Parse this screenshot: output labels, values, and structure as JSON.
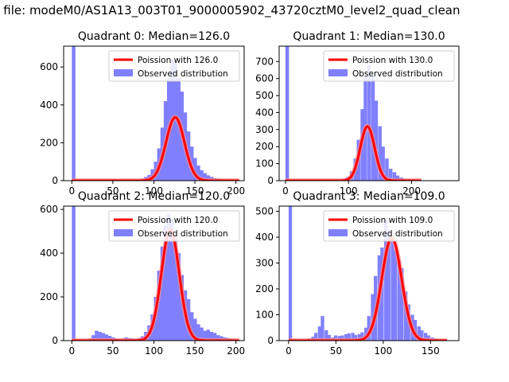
{
  "suptitle": "n file: modeM0/AS1A13_003T01_9000005902_43720cztM0_level2_quad_clean",
  "chart_data": [
    {
      "type": "bar",
      "title": "Quadrant 0: Median=126.0",
      "xlim": [
        -10,
        210
      ],
      "ylim": [
        0,
        710
      ],
      "xticks": [
        0,
        50,
        100,
        150,
        200
      ],
      "yticks": [
        0,
        200,
        400,
        600
      ],
      "bin_width": 4.4,
      "hist_x": [
        0,
        72,
        76,
        80,
        84,
        88,
        92,
        96,
        100,
        104,
        108,
        112,
        116,
        120,
        124,
        128,
        132,
        136,
        140,
        144,
        148,
        152,
        156,
        160,
        164,
        168,
        172,
        176,
        180,
        184,
        188,
        192,
        196,
        200
      ],
      "hist_y": [
        710,
        2,
        3,
        5,
        10,
        20,
        30,
        60,
        100,
        170,
        280,
        420,
        540,
        640,
        630,
        540,
        470,
        360,
        260,
        180,
        120,
        80,
        55,
        40,
        28,
        20,
        14,
        10,
        8,
        6,
        5,
        4,
        3,
        2
      ],
      "poisson_mean": 126.0,
      "poisson_scale": 4.4,
      "poisson_n": 9400,
      "legend": [
        "Poission with 126.0",
        "Observed distribution"
      ]
    },
    {
      "type": "bar",
      "title": "Quadrant 1: Median=130.0",
      "xlim": [
        -10,
        275
      ],
      "ylim": [
        0,
        790
      ],
      "xticks": [
        0,
        100,
        200
      ],
      "yticks": [
        0,
        100,
        200,
        300,
        400,
        500,
        600,
        700
      ],
      "bin_width": 5.6,
      "hist_x": [
        0,
        40,
        80,
        90,
        96,
        102,
        108,
        113,
        119,
        124,
        130,
        136,
        141,
        147,
        152,
        158,
        164,
        170,
        175,
        181,
        186,
        192,
        198,
        204,
        210
      ],
      "hist_y": [
        790,
        8,
        4,
        6,
        22,
        55,
        130,
        240,
        420,
        610,
        680,
        620,
        470,
        320,
        200,
        130,
        70,
        50,
        30,
        18,
        10,
        6,
        4,
        3,
        2
      ],
      "poisson_mean": 130.0,
      "poisson_scale": 5.6,
      "poisson_n": 9100,
      "legend": [
        "Poission with 130.0",
        "Observed distribution"
      ]
    },
    {
      "type": "bar",
      "title": "Quadrant 2: Median=120.0",
      "xlim": [
        -10,
        210
      ],
      "ylim": [
        0,
        615
      ],
      "xticks": [
        0,
        50,
        100,
        150,
        200
      ],
      "yticks": [
        0,
        200,
        400,
        600
      ],
      "bin_width": 4.4,
      "hist_x": [
        0,
        20,
        24,
        28,
        32,
        36,
        40,
        44,
        48,
        52,
        56,
        60,
        64,
        68,
        72,
        76,
        80,
        84,
        88,
        92,
        96,
        100,
        104,
        108,
        112,
        116,
        120,
        124,
        128,
        132,
        136,
        140,
        144,
        148,
        152,
        156,
        160,
        164,
        168,
        172,
        176,
        180,
        184,
        188,
        192,
        196,
        200
      ],
      "hist_y": [
        615,
        10,
        25,
        45,
        40,
        35,
        28,
        22,
        15,
        10,
        8,
        10,
        15,
        12,
        10,
        8,
        12,
        20,
        40,
        70,
        120,
        200,
        320,
        430,
        530,
        580,
        560,
        470,
        400,
        300,
        230,
        190,
        130,
        100,
        75,
        60,
        45,
        50,
        40,
        35,
        25,
        20,
        15,
        12,
        8,
        6,
        4
      ],
      "poisson_mean": 120.0,
      "poisson_scale": 4.4,
      "poisson_n": 13900,
      "legend": [
        "Poission with 120.0",
        "Observed distribution"
      ]
    },
    {
      "type": "bar",
      "title": "Quadrant 3: Median=109.0",
      "xlim": [
        -10,
        180
      ],
      "ylim": [
        0,
        520
      ],
      "xticks": [
        0,
        50,
        100,
        150
      ],
      "yticks": [
        0,
        100,
        200,
        300,
        400,
        500
      ],
      "bin_width": 3.6,
      "hist_x": [
        0,
        20,
        24,
        27,
        31,
        34,
        38,
        41,
        45,
        48,
        52,
        55,
        59,
        62,
        66,
        69,
        73,
        76,
        80,
        83,
        87,
        90,
        94,
        97,
        101,
        104,
        108,
        111,
        115,
        118,
        122,
        125,
        129,
        132,
        136,
        139,
        143,
        146,
        150,
        153,
        157,
        160,
        164
      ],
      "hist_y": [
        520,
        8,
        15,
        30,
        55,
        95,
        40,
        22,
        12,
        20,
        18,
        20,
        25,
        28,
        30,
        22,
        25,
        32,
        50,
        95,
        180,
        250,
        330,
        360,
        470,
        430,
        390,
        350,
        310,
        280,
        190,
        140,
        100,
        80,
        55,
        40,
        30,
        20,
        12,
        8,
        5,
        3,
        2
      ],
      "poisson_mean": 109.0,
      "poisson_scale": 3.6,
      "poisson_n": 10400,
      "legend": [
        "Poission with 109.0",
        "Observed distribution"
      ]
    }
  ],
  "colors": {
    "hist": "#8080ff",
    "poisson_line": "#ff0000",
    "poisson_halo": "#ff8c8c",
    "axis": "#000000"
  }
}
